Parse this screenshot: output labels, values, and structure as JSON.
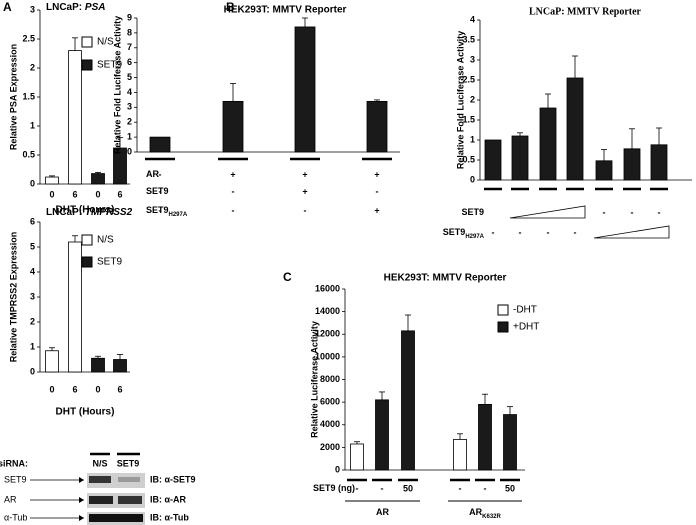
{
  "panels": [
    "A",
    "B",
    "C"
  ],
  "chart_data": [
    {
      "type": "bar",
      "title": "LNCaP: PSA",
      "y_label": "Relative PSA Expression",
      "x_label": "DHT (Hours)",
      "categories": [
        "0",
        "6",
        "0",
        "6"
      ],
      "series": [
        {
          "name": "N/S",
          "color": "#ffffff",
          "values": [
            0.12,
            2.3,
            null,
            null
          ],
          "errors": [
            0.02,
            0.22,
            null,
            null
          ]
        },
        {
          "name": "SET9",
          "color": "#1a1a1a",
          "values": [
            null,
            null,
            0.18,
            0.62
          ],
          "errors": [
            null,
            null,
            0.02,
            0.18
          ]
        }
      ],
      "ylim": [
        0,
        3
      ],
      "yticks": [
        0,
        0.5,
        1,
        1.5,
        2,
        2.5,
        3
      ],
      "grid": false,
      "legend": "upper-right"
    },
    {
      "type": "bar",
      "title": "LNCaP: TMPRSS2",
      "y_label": "Relative TMPRSS2 Expression",
      "x_label": "DHT (Hours)",
      "categories": [
        "0",
        "6",
        "0",
        "6"
      ],
      "series": [
        {
          "name": "N/S",
          "color": "#ffffff",
          "values": [
            0.85,
            5.2,
            null,
            null
          ],
          "errors": [
            0.12,
            0.25,
            null,
            null
          ]
        },
        {
          "name": "SET9",
          "color": "#1a1a1a",
          "values": [
            null,
            null,
            0.55,
            0.5
          ],
          "errors": [
            null,
            null,
            0.08,
            0.2
          ]
        }
      ],
      "ylim": [
        0,
        6
      ],
      "yticks": [
        0,
        1,
        2,
        3,
        4,
        5,
        6
      ],
      "grid": false,
      "legend": "upper-right"
    },
    {
      "type": "bar",
      "title": "HEK293T: MMTV Reporter",
      "y_label": "Relative Fold Luciferase Activity",
      "categories": [
        null,
        null,
        null,
        null
      ],
      "series": [
        {
          "color": "#1a1a1a",
          "values": [
            1,
            3.4,
            8.4,
            3.4
          ],
          "errors": [
            null,
            1.2,
            0.6,
            0.1
          ]
        }
      ],
      "ylim": [
        0,
        9
      ],
      "yticks": [
        0,
        1,
        2,
        3,
        4,
        5,
        6,
        7,
        8,
        9
      ],
      "grid": false,
      "rows": [
        {
          "label": {
            "text": "AR"
          },
          "values": [
            "-",
            "+",
            "+",
            "+"
          ]
        },
        {
          "label": {
            "text": "SET9"
          },
          "values": [
            "-",
            "-",
            "+",
            "-"
          ]
        },
        {
          "label": {
            "text": "SET9",
            "sub": "H297A"
          },
          "values": [
            "-",
            "-",
            "-",
            "+"
          ]
        }
      ]
    },
    {
      "type": "bar",
      "title": "LNCaP: MMTV Reporter",
      "y_label": "Relative Fold Luciferase Activity",
      "categories": [
        null,
        null,
        null,
        null,
        null,
        null,
        null
      ],
      "series": [
        {
          "color": "#1a1a1a",
          "values": [
            1,
            1.1,
            1.8,
            2.55,
            0.48,
            0.78,
            0.88
          ],
          "errors": [
            null,
            0.08,
            0.35,
            0.55,
            0.28,
            0.5,
            0.42
          ]
        }
      ],
      "ylim": [
        0,
        4
      ],
      "yticks": [
        0,
        0.5,
        1,
        1.5,
        2,
        2.5,
        3,
        3.5,
        4
      ],
      "grid": false,
      "rows": [
        {
          "label": {
            "text": "SET9"
          },
          "values": [
            null,
            null,
            null,
            null,
            "-",
            "-",
            "-"
          ]
        },
        {
          "label": {
            "text": "SET9",
            "sub": "H297A"
          },
          "values": [
            "-",
            "-",
            "-",
            "-",
            null,
            null,
            null
          ]
        }
      ]
    },
    {
      "type": "bar",
      "title": "HEK293T: MMTV Reporter",
      "y_label": "Relative Luciferase Activity",
      "categories": [
        null,
        null,
        null,
        null,
        null,
        null
      ],
      "series": [
        {
          "name": "-DHT",
          "color": "#ffffff",
          "values": [
            2300,
            null,
            null,
            2700,
            null,
            null
          ],
          "errors": [
            200,
            null,
            null,
            500,
            null,
            null
          ]
        },
        {
          "name": "+DHT",
          "color": "#1a1a1a",
          "values": [
            null,
            6200,
            12300,
            null,
            5800,
            4900
          ],
          "errors": [
            null,
            700,
            1400,
            null,
            900,
            700
          ]
        }
      ],
      "ylim": [
        0,
        16000
      ],
      "yticks": [
        0,
        2000,
        4000,
        6000,
        8000,
        10000,
        12000,
        14000,
        16000
      ],
      "grid": false,
      "legend": "upper-right",
      "rows": [
        {
          "label": {
            "text": "SET9 (ng)"
          },
          "values": [
            "-",
            "-",
            "50",
            "-",
            "-",
            "50"
          ]
        }
      ],
      "groups": [
        {
          "label": {
            "text": "AR"
          }
        },
        {
          "label": {
            "text": "AR",
            "sub": "K632R"
          }
        }
      ]
    }
  ],
  "blot": {
    "row_label": "siRNA:",
    "lanes": [
      "N/S",
      "SET9"
    ],
    "bands": [
      {
        "protein": "SET9",
        "antibody": "IB: α-SET9"
      },
      {
        "protein": "AR",
        "antibody": "IB: α-AR"
      },
      {
        "protein": "α-Tub",
        "antibody": "IB: α-Tub"
      }
    ]
  }
}
